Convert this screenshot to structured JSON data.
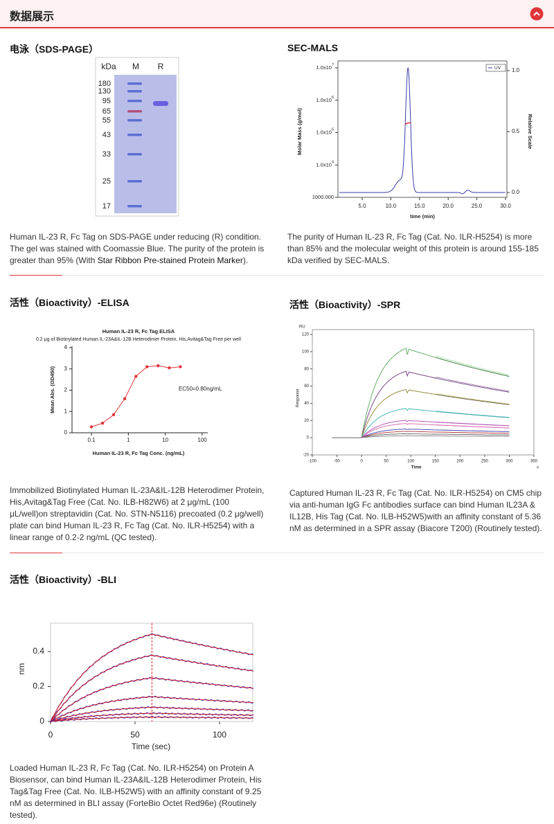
{
  "header": {
    "title": "数据展示"
  },
  "sds_page": {
    "title": "电泳（SDS-PAGE）",
    "gel": {
      "kda_label": "kDa",
      "lanes": [
        "M",
        "R"
      ],
      "markers": [
        180,
        130,
        95,
        65,
        55,
        43,
        33,
        25,
        17
      ]
    },
    "caption": {
      "before": "Human IL-23 R, Fc Tag on SDS-PAGE under reducing (R) condition. The gel was stained with Coomassie Blue. The purity of the protein is greater than 95% (With ",
      "link": "Star Ribbon Pre-stained Protein Marker",
      "after": ")."
    }
  },
  "sec_mals": {
    "title": "SEC-MALS",
    "chart": {
      "y_label": "Molar Mass (g/mol)",
      "y2_label": "Relative Scale",
      "x_label": "time (min)",
      "legend": "UV",
      "yticks": [
        {
          "base": "1.0x10",
          "exp": "7"
        },
        {
          "base": "1.0x10",
          "exp": "6"
        },
        {
          "base": "1.0x10",
          "exp": "5"
        },
        {
          "base": "1.0x10",
          "exp": "4"
        },
        {
          "base": "1000.000"
        }
      ],
      "xticks": [
        {
          "value": 5,
          "label": "5.0"
        },
        {
          "value": 10,
          "label": "10.0"
        },
        {
          "value": 15,
          "label": "15.0"
        },
        {
          "value": 20,
          "label": "20.0"
        },
        {
          "value": 25,
          "label": "25.0"
        },
        {
          "value": 30,
          "label": "30.0"
        }
      ],
      "y2ticks": [
        {
          "value": 1,
          "label": "1.0"
        },
        {
          "value": 0.5,
          "label": "0.5"
        },
        {
          "value": 0,
          "label": "0.0"
        }
      ]
    },
    "caption": "The purity of Human IL-23 R, Fc Tag (Cat. No. ILR-H5254) is more than 85% and the molecular weight of this protein is around 155-185 kDa verified by SEC-MALS."
  },
  "elisa": {
    "title": "活性（Bioactivity）-ELISA",
    "chart": {
      "title": "Human IL-23 R, Fc Tag ELISA",
      "subtitle": "0.2 μg of Biotinylated Human IL-23A&IL-12B Heterodimer Protein, His,Avitag&Tag Free per well",
      "y_label": "Mean Abs. (OD450)",
      "x_label": "Human IL-23 R, Fc Tag Conc. (ng/mL)",
      "annotation": "EC50=0.80ng/mL",
      "log_x": true,
      "yticks": [
        0,
        1,
        2,
        3,
        4
      ],
      "xticks": [
        0.1,
        1,
        10,
        100
      ],
      "x": [
        0.1,
        0.2,
        0.4,
        0.8,
        1.6,
        3.2,
        6.4,
        12.8,
        25.6
      ],
      "values": [
        0.28,
        0.45,
        0.85,
        1.6,
        2.65,
        3.1,
        3.15,
        3.05,
        3.1
      ],
      "color": "#e0353a"
    },
    "caption": "Immobilized Biotinylated Human IL-23A&IL-12B Heterodimer Protein, His,Avitag&Tag Free (Cat. No. ILB-H82W6) at 2 μg/mL (100 μL/well)on streptavidin (Cat. No. STN-N5116) precoated (0.2 μg/well) plate can bind Human IL-23 R, Fc Tag (Cat. No. ILR-H5254) with a linear range of 0.2-2 ng/mL (QC tested)."
  },
  "spr": {
    "title": "活性（Bioactivity）-SPR",
    "chart": {
      "unit": "RU",
      "y_label": "Response",
      "x_label": "Time",
      "x_unit": "s",
      "yticks": [
        -20,
        0,
        20,
        40,
        60,
        80,
        100,
        120
      ],
      "xticks": [
        -100,
        -50,
        0,
        50,
        100,
        150,
        200,
        250,
        300,
        350
      ]
    },
    "caption": "Captured Human IL-23 R, Fc Tag (Cat. No. ILR-H5254) on CM5 chip via anti-human IgG Fc antibodies surface can bind Human IL23A & IL12B, His Tag (Cat. No. ILB-H52W5)with an affinity constant of 5.36 nM as determined in a SPR assay (Biacore T200) (Routinely tested)."
  },
  "bli": {
    "title": "活性（Bioactivity）-BLI",
    "chart": {
      "y_label": "nm",
      "x_label": "Time (sec)",
      "yticks": [
        0,
        0.2,
        0.4
      ],
      "xticks": [
        0,
        50,
        100
      ]
    },
    "caption": "Loaded Human IL-23 R, Fc Tag (Cat. No. ILR-H5254) on Protein A Biosensor, can bind Human IL-23A&IL-12B Heterodimer Protein, His Tag&Tag Free (Cat. No. ILB-H52W5) with an affinity constant of 9.25 nM as determined in BLI assay (ForteBio Octet Red96e) (Routinely tested)."
  }
}
